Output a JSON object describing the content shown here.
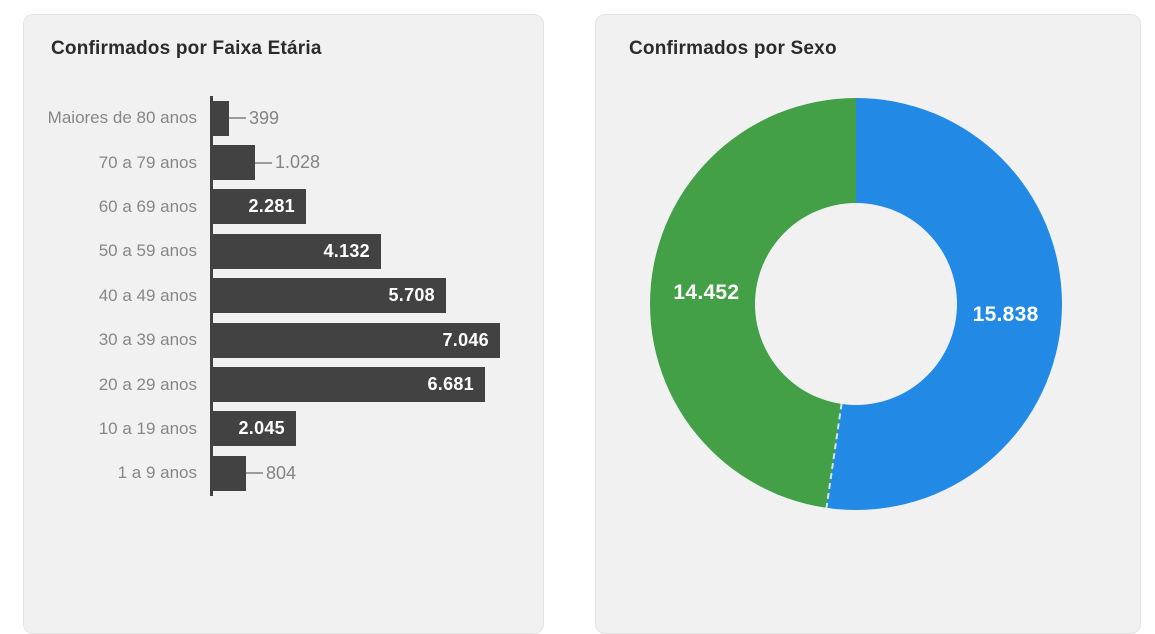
{
  "page": {
    "background": "#ffffff",
    "panel_background": "#f1f1f2",
    "panel_border": "#e3e3e4"
  },
  "chart_data": [
    {
      "type": "bar",
      "orientation": "horizontal",
      "title": "Confirmados por Faixa Etária",
      "categories": [
        "Maiores de 80 anos",
        "70 a 79 anos",
        "60 a 69 anos",
        "50 a 59 anos",
        "40 a 49 anos",
        "30 a 39 anos",
        "20 a 29 anos",
        "10 a 19 anos",
        "1 a 9 anos"
      ],
      "values": [
        399,
        1028,
        2281,
        4132,
        5708,
        7046,
        6681,
        2045,
        804
      ],
      "value_labels": [
        "399",
        "1.028",
        "2.281",
        "4.132",
        "5.708",
        "7.046",
        "6.681",
        "2.045",
        "804"
      ],
      "bar_color": "#424242",
      "label_color": "#878787",
      "xlim": [
        0,
        7400
      ],
      "grid": false,
      "legend": false
    },
    {
      "type": "pie",
      "subtype": "donut",
      "title": "Confirmados por Sexo",
      "slices": [
        {
          "label": "15.838",
          "value": 15838,
          "color": "#2289e5"
        },
        {
          "label": "14.452",
          "value": 14452,
          "color": "#43a047"
        }
      ],
      "start_angle_deg": 0,
      "direction": "clockwise",
      "inner_radius_ratio": 0.49,
      "grid": false,
      "legend": false
    }
  ]
}
